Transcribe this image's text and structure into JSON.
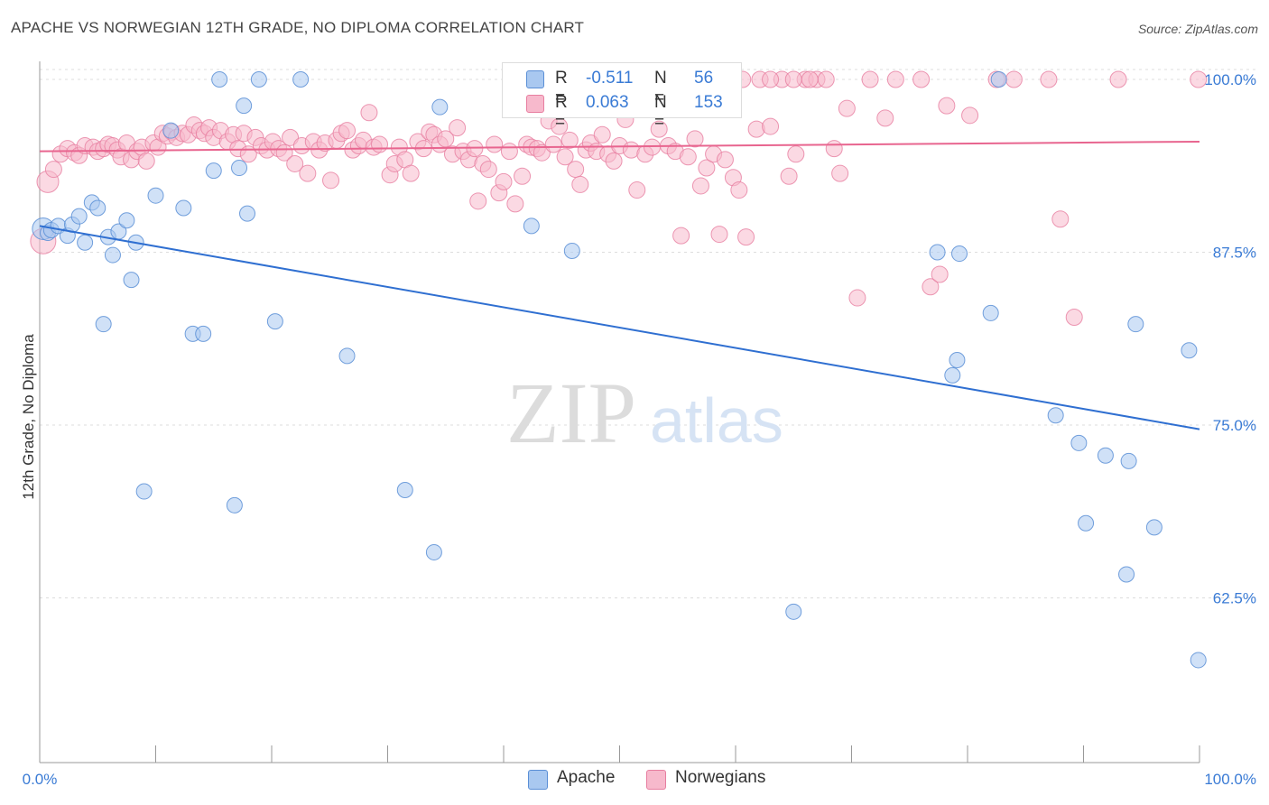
{
  "header": {
    "title": "APACHE VS NORWEGIAN 12TH GRADE, NO DIPLOMA CORRELATION CHART",
    "source": "Source: ZipAtlas.com"
  },
  "watermark": {
    "zip": "ZIP",
    "atlas": "atlas"
  },
  "legend": {
    "rows": [
      {
        "r_label": "R =",
        "r_value": "-0.511",
        "n_label": "N =",
        "n_value": "56"
      },
      {
        "r_label": "R =",
        "r_value": "0.063",
        "n_label": "N =",
        "n_value": "153"
      }
    ]
  },
  "bottom_legend": {
    "apache": "Apache",
    "norwegians": "Norwegians"
  },
  "colors": {
    "apache_fill": "#a9c8f0",
    "apache_stroke": "#5b8fd6",
    "apache_line": "#2f6fd1",
    "norwegian_fill": "#f7b9cc",
    "norwegian_stroke": "#e77ea0",
    "norwegian_line": "#e8658f",
    "axis_text": "#3a7bd5",
    "grid": "#dddddd"
  },
  "chart_data": {
    "type": "scatter",
    "title": "APACHE VS NORWEGIAN 12TH GRADE, NO DIPLOMA CORRELATION CHART",
    "xlabel": "",
    "ylabel": "12th Grade, No Diploma",
    "xlim": [
      0,
      100
    ],
    "ylim": [
      52.0,
      101.5
    ],
    "x_tick_labels": [
      "0.0%",
      "100.0%"
    ],
    "y_ticks": [
      62.5,
      75.0,
      87.5,
      100.0
    ],
    "y_tick_labels": [
      "62.5%",
      "75.0%",
      "87.5%",
      "100.0%"
    ],
    "grid": "horizontal dashed",
    "legend_position": "top-center",
    "series": [
      {
        "name": "Apache",
        "R": -0.511,
        "N": 56,
        "trend": {
          "x": [
            0,
            100
          ],
          "y": [
            89.4,
            74.7
          ]
        },
        "points": [
          [
            0.3,
            89.2
          ],
          [
            0.7,
            88.9
          ],
          [
            1.0,
            89.1
          ],
          [
            1.6,
            89.4
          ],
          [
            2.4,
            88.7
          ],
          [
            2.8,
            89.5
          ],
          [
            3.4,
            90.1
          ],
          [
            3.9,
            88.2
          ],
          [
            4.5,
            91.1
          ],
          [
            5.0,
            90.7
          ],
          [
            5.5,
            82.3
          ],
          [
            5.9,
            88.6
          ],
          [
            6.3,
            87.3
          ],
          [
            6.8,
            89.0
          ],
          [
            7.5,
            89.8
          ],
          [
            7.9,
            85.5
          ],
          [
            8.3,
            88.2
          ],
          [
            9.0,
            70.2
          ],
          [
            10.0,
            91.6
          ],
          [
            11.3,
            96.3
          ],
          [
            12.4,
            90.7
          ],
          [
            13.2,
            81.6
          ],
          [
            14.1,
            81.6
          ],
          [
            15.0,
            93.4
          ],
          [
            15.5,
            100.0
          ],
          [
            16.8,
            69.2
          ],
          [
            17.2,
            93.6
          ],
          [
            17.6,
            98.1
          ],
          [
            17.9,
            90.3
          ],
          [
            18.9,
            100.0
          ],
          [
            20.3,
            82.5
          ],
          [
            22.5,
            100.0
          ],
          [
            26.5,
            80.0
          ],
          [
            31.5,
            70.3
          ],
          [
            34.0,
            65.8
          ],
          [
            34.5,
            98.0
          ],
          [
            42.4,
            89.4
          ],
          [
            45.9,
            87.6
          ],
          [
            45.9,
            100.0
          ],
          [
            65.0,
            61.5
          ],
          [
            77.4,
            87.5
          ],
          [
            78.7,
            78.6
          ],
          [
            79.1,
            79.7
          ],
          [
            79.3,
            87.4
          ],
          [
            82.0,
            83.1
          ],
          [
            82.7,
            100.0
          ],
          [
            87.6,
            75.7
          ],
          [
            89.6,
            73.7
          ],
          [
            90.2,
            67.9
          ],
          [
            91.9,
            72.8
          ],
          [
            93.7,
            64.2
          ],
          [
            93.9,
            72.4
          ],
          [
            94.5,
            82.3
          ],
          [
            96.1,
            67.6
          ],
          [
            99.1,
            80.4
          ],
          [
            99.9,
            58.0
          ]
        ]
      },
      {
        "name": "Norwegians",
        "R": 0.063,
        "N": 153,
        "trend": {
          "x": [
            0,
            100
          ],
          "y": [
            94.8,
            95.5
          ]
        },
        "points": [
          [
            0.3,
            88.3
          ],
          [
            0.7,
            92.6
          ],
          [
            1.2,
            93.5
          ],
          [
            1.8,
            94.6
          ],
          [
            2.4,
            95.0
          ],
          [
            3.0,
            94.7
          ],
          [
            3.4,
            94.5
          ],
          [
            3.9,
            95.2
          ],
          [
            4.6,
            95.1
          ],
          [
            5.0,
            94.8
          ],
          [
            5.5,
            95.0
          ],
          [
            5.9,
            95.3
          ],
          [
            6.3,
            95.2
          ],
          [
            6.7,
            94.9
          ],
          [
            7.0,
            94.4
          ],
          [
            7.5,
            95.4
          ],
          [
            7.9,
            94.2
          ],
          [
            8.4,
            94.8
          ],
          [
            8.8,
            95.1
          ],
          [
            9.2,
            94.1
          ],
          [
            9.8,
            95.4
          ],
          [
            10.2,
            95.1
          ],
          [
            10.6,
            96.1
          ],
          [
            11.0,
            95.9
          ],
          [
            11.4,
            96.2
          ],
          [
            11.8,
            95.8
          ],
          [
            12.3,
            96.1
          ],
          [
            12.8,
            96.0
          ],
          [
            13.3,
            96.7
          ],
          [
            13.8,
            96.3
          ],
          [
            14.2,
            96.1
          ],
          [
            14.6,
            96.5
          ],
          [
            15.0,
            95.8
          ],
          [
            15.6,
            96.3
          ],
          [
            16.2,
            95.5
          ],
          [
            16.7,
            96.0
          ],
          [
            17.1,
            95.0
          ],
          [
            17.6,
            96.1
          ],
          [
            18.0,
            94.6
          ],
          [
            18.6,
            95.8
          ],
          [
            19.1,
            95.2
          ],
          [
            19.6,
            94.9
          ],
          [
            20.1,
            95.5
          ],
          [
            20.6,
            95.0
          ],
          [
            21.1,
            94.7
          ],
          [
            21.6,
            95.8
          ],
          [
            22.0,
            93.9
          ],
          [
            22.6,
            95.2
          ],
          [
            23.1,
            93.2
          ],
          [
            23.6,
            95.5
          ],
          [
            24.1,
            94.9
          ],
          [
            24.6,
            95.4
          ],
          [
            25.1,
            92.7
          ],
          [
            25.6,
            95.6
          ],
          [
            26.0,
            96.1
          ],
          [
            26.5,
            96.3
          ],
          [
            27.0,
            94.9
          ],
          [
            27.5,
            95.2
          ],
          [
            27.9,
            95.6
          ],
          [
            28.4,
            97.6
          ],
          [
            28.8,
            95.1
          ],
          [
            29.3,
            95.3
          ],
          [
            30.2,
            93.1
          ],
          [
            30.6,
            93.9
          ],
          [
            31.0,
            95.1
          ],
          [
            31.5,
            94.2
          ],
          [
            32.0,
            93.2
          ],
          [
            32.6,
            95.5
          ],
          [
            33.1,
            95.0
          ],
          [
            33.6,
            96.2
          ],
          [
            34.0,
            96.0
          ],
          [
            34.5,
            95.3
          ],
          [
            35.0,
            95.7
          ],
          [
            35.6,
            94.6
          ],
          [
            36.0,
            96.5
          ],
          [
            36.5,
            94.8
          ],
          [
            37.0,
            94.2
          ],
          [
            37.5,
            95.0
          ],
          [
            37.8,
            91.2
          ],
          [
            38.2,
            93.9
          ],
          [
            38.7,
            93.5
          ],
          [
            39.2,
            95.3
          ],
          [
            39.6,
            91.8
          ],
          [
            40.0,
            92.6
          ],
          [
            40.5,
            94.8
          ],
          [
            41.0,
            91.0
          ],
          [
            41.6,
            93.0
          ],
          [
            42.0,
            95.3
          ],
          [
            42.4,
            95.1
          ],
          [
            42.9,
            95.0
          ],
          [
            43.3,
            94.7
          ],
          [
            43.9,
            97.0
          ],
          [
            44.3,
            95.3
          ],
          [
            44.8,
            96.6
          ],
          [
            45.3,
            94.4
          ],
          [
            45.7,
            95.6
          ],
          [
            46.2,
            93.5
          ],
          [
            46.6,
            92.4
          ],
          [
            47.1,
            94.9
          ],
          [
            47.5,
            95.4
          ],
          [
            48.0,
            94.8
          ],
          [
            48.5,
            96.0
          ],
          [
            49.0,
            94.6
          ],
          [
            49.5,
            94.1
          ],
          [
            50.0,
            95.2
          ],
          [
            50.5,
            97.1
          ],
          [
            51.0,
            94.9
          ],
          [
            51.5,
            92.0
          ],
          [
            52.2,
            94.6
          ],
          [
            52.8,
            95.1
          ],
          [
            53.4,
            96.4
          ],
          [
            54.2,
            95.2
          ],
          [
            54.8,
            94.8
          ],
          [
            55.3,
            88.7
          ],
          [
            55.9,
            94.4
          ],
          [
            56.5,
            95.7
          ],
          [
            57.0,
            92.3
          ],
          [
            57.5,
            93.6
          ],
          [
            58.1,
            94.6
          ],
          [
            58.6,
            88.8
          ],
          [
            59.1,
            94.2
          ],
          [
            59.8,
            92.9
          ],
          [
            60.3,
            92.0
          ],
          [
            60.9,
            88.6
          ],
          [
            61.8,
            96.4
          ],
          [
            63.0,
            96.6
          ],
          [
            64.0,
            100.0
          ],
          [
            64.6,
            93.0
          ],
          [
            65.2,
            94.6
          ],
          [
            66.0,
            100.0
          ],
          [
            67.0,
            100.0
          ],
          [
            67.8,
            100.0
          ],
          [
            68.5,
            95.0
          ],
          [
            69.0,
            93.2
          ],
          [
            69.6,
            97.9
          ],
          [
            70.5,
            84.2
          ],
          [
            71.6,
            100.0
          ],
          [
            72.9,
            97.2
          ],
          [
            73.8,
            100.0
          ],
          [
            76.0,
            100.0
          ],
          [
            76.8,
            85.0
          ],
          [
            77.6,
            85.9
          ],
          [
            78.2,
            98.1
          ],
          [
            80.2,
            97.4
          ],
          [
            82.5,
            100.0
          ],
          [
            84.0,
            100.0
          ],
          [
            87.0,
            100.0
          ],
          [
            88.0,
            89.9
          ],
          [
            89.2,
            82.8
          ],
          [
            93.0,
            100.0
          ],
          [
            99.9,
            100.0
          ],
          [
            51.8,
            100.0
          ],
          [
            60.6,
            100.0
          ],
          [
            62.1,
            100.0
          ],
          [
            63.0,
            100.0
          ],
          [
            65.0,
            100.0
          ],
          [
            66.4,
            100.0
          ]
        ]
      }
    ]
  }
}
